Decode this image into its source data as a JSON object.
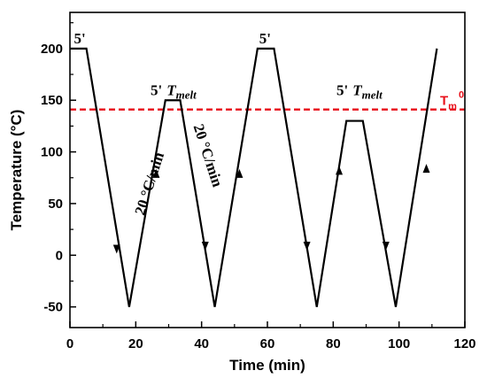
{
  "chart_data": {
    "type": "line",
    "title": "",
    "xlabel": "Time (min)",
    "ylabel": "Temperature (°C)",
    "xlim": [
      0,
      120
    ],
    "ylim": [
      -70,
      235
    ],
    "x_ticks": [
      0,
      20,
      40,
      60,
      80,
      100,
      120
    ],
    "y_ticks": [
      -50,
      0,
      50,
      100,
      150,
      200
    ],
    "grid": false,
    "series": [
      {
        "color": "#000000",
        "x": [
          0,
          5,
          18,
          29,
          33.5,
          44,
          57,
          62,
          75,
          84,
          89,
          99,
          111.5
        ],
        "y": [
          200,
          200,
          -50,
          150,
          150,
          -50,
          200,
          200,
          -50,
          130,
          130,
          -50,
          200
        ]
      }
    ],
    "reference_line": {
      "y": 141,
      "color": "#e8101a",
      "style": "dashed",
      "label": "T",
      "label_sub": "m",
      "label_sup": "0"
    },
    "arrows": [
      {
        "x": 14.2,
        "y": 5,
        "dir": "down"
      },
      {
        "x": 26.2,
        "y": 80,
        "dir": "up"
      },
      {
        "x": 41.1,
        "y": 8,
        "dir": "down"
      },
      {
        "x": 51.5,
        "y": 80,
        "dir": "up"
      },
      {
        "x": 72,
        "y": 8,
        "dir": "down"
      },
      {
        "x": 81.8,
        "y": 83,
        "dir": "up"
      },
      {
        "x": 96,
        "y": 8,
        "dir": "down"
      },
      {
        "x": 108.3,
        "y": 85,
        "dir": "up"
      }
    ],
    "annotations": [
      {
        "text": "5'",
        "x": 1.2,
        "y": 205
      },
      {
        "text": "5'",
        "x": 57.5,
        "y": 205
      },
      {
        "text": "5'",
        "x": 24.5,
        "y": 155,
        "suffix": "T",
        "suffix_sub": "melt"
      },
      {
        "text": "5'",
        "x": 81,
        "y": 155,
        "suffix": "T",
        "suffix_sub": "melt"
      },
      {
        "text": "20 °C/min",
        "x": 22.5,
        "y": 38,
        "rotate": -72
      },
      {
        "text": "20 °C/min",
        "x": 37.5,
        "y": 125,
        "rotate": 72
      }
    ]
  }
}
